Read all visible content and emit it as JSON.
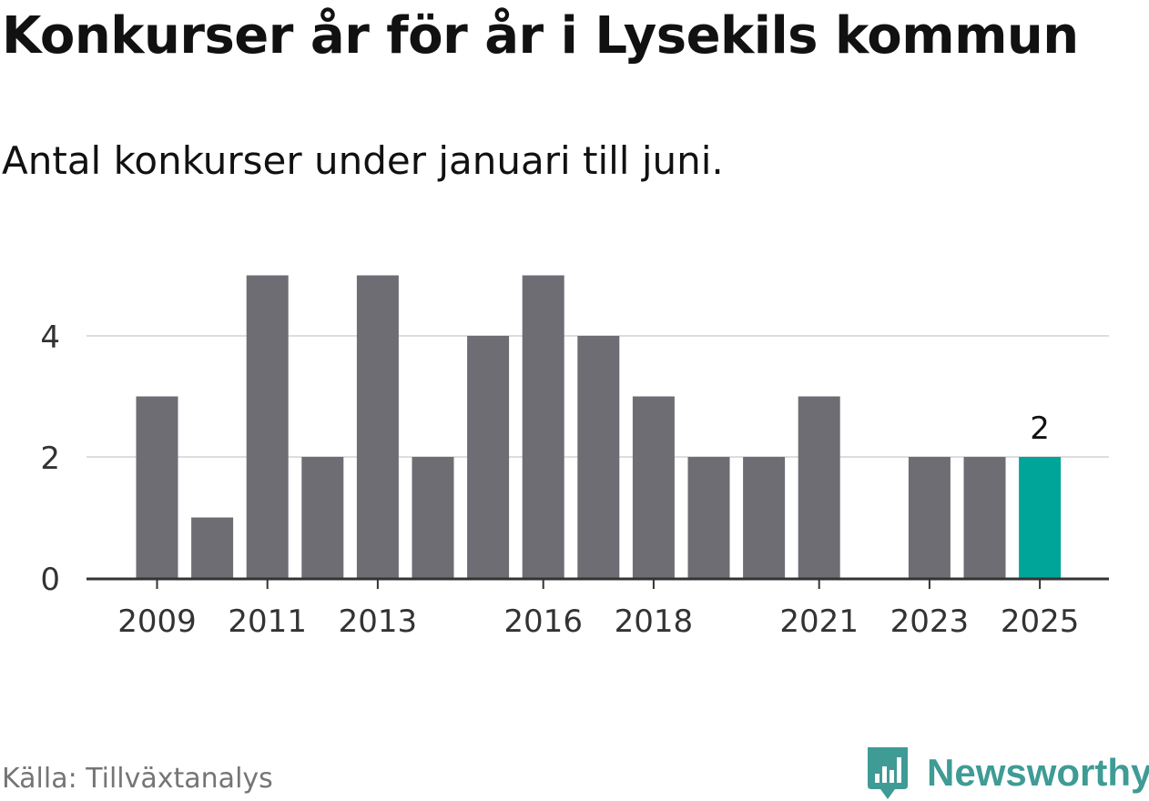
{
  "title": "Konkurser år för år i Lysekils kommun",
  "subtitle": "Antal konkurser under januari till juni.",
  "source": "Källa: Tillväxtanalys",
  "brand": {
    "name": "Newsworthy",
    "icon": "newsworthy-logo-icon",
    "color": "#3f9b95"
  },
  "chart_data": {
    "type": "bar",
    "categories": [
      "2009",
      "2010",
      "2011",
      "2012",
      "2013",
      "2014",
      "2015",
      "2016",
      "2017",
      "2018",
      "2019",
      "2020",
      "2021",
      "2022",
      "2023",
      "2024",
      "2025"
    ],
    "values": [
      3,
      1,
      5,
      2,
      5,
      2,
      4,
      5,
      4,
      3,
      2,
      2,
      3,
      0,
      2,
      2,
      2
    ],
    "x_tick_labels": [
      "2009",
      "2011",
      "2013",
      "2016",
      "2018",
      "2021",
      "2023",
      "2025"
    ],
    "y_ticks": [
      0,
      2,
      4
    ],
    "ylim": [
      0,
      5
    ],
    "grid": true,
    "bar_color": "#6e6d73",
    "highlight": {
      "category": "2025",
      "color": "#00a59a",
      "label": "2"
    },
    "xlabel": "",
    "ylabel": ""
  }
}
